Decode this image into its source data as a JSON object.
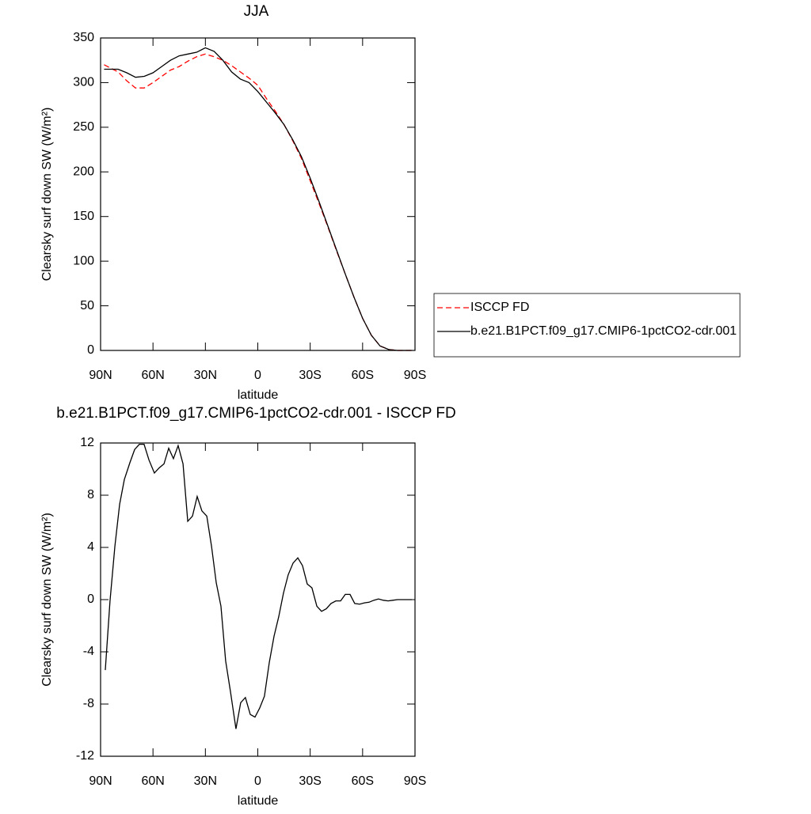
{
  "chart_data": [
    {
      "type": "line",
      "title": "JJA",
      "xlabel": "latitude",
      "ylabel": "Clearsky surf down SW (W/m²)",
      "x": [
        88,
        80,
        75,
        70,
        65,
        60,
        55,
        50,
        45,
        40,
        35,
        30,
        25,
        20,
        15,
        10,
        5,
        0,
        -5,
        -10,
        -15,
        -20,
        -25,
        -30,
        -35,
        -40,
        -45,
        -50,
        -55,
        -60,
        -65,
        -70,
        -75,
        -80,
        -85,
        -88
      ],
      "xlim": [
        90,
        -90
      ],
      "xticks": [
        {
          "value": 90,
          "label": "90N"
        },
        {
          "value": 60,
          "label": "60N"
        },
        {
          "value": 30,
          "label": "30N"
        },
        0,
        {
          "value": -30,
          "label": "30S"
        },
        {
          "value": -60,
          "label": "60S"
        },
        {
          "value": -90,
          "label": "90S"
        }
      ],
      "ylim": [
        0,
        350
      ],
      "yticks": [
        0,
        50,
        100,
        150,
        200,
        250,
        300,
        350
      ],
      "legend": "right",
      "series": [
        {
          "name": "ISCCP FD",
          "color": "#ff0000",
          "line_style": "dashed",
          "values": [
            320,
            312,
            302,
            294,
            294,
            300,
            307,
            314,
            318,
            324,
            329,
            332,
            329,
            325,
            319,
            312,
            305,
            297,
            282,
            268,
            253,
            235,
            215,
            190,
            165,
            139,
            112,
            86,
            60,
            36,
            17,
            5,
            1,
            0,
            0,
            0
          ]
        },
        {
          "name": "b.e21.B1PCT.f09_g17.CMIP6-1pctCO2-cdr.001",
          "color": "#000000",
          "line_style": "solid",
          "values": [
            315,
            315,
            311,
            306,
            307,
            311,
            318,
            325,
            330,
            332,
            334,
            339,
            335,
            325,
            312,
            304,
            300,
            290,
            278,
            266,
            253,
            236,
            217,
            193,
            167,
            140,
            113,
            86,
            60,
            36,
            17,
            5,
            1,
            0,
            0,
            0
          ]
        }
      ]
    },
    {
      "type": "line",
      "title": "b.e21.B1PCT.f09_g17.CMIP6-1pctCO2-cdr.001 - ISCCP FD",
      "xlabel": "latitude",
      "ylabel": "Clearsky surf down SW (W/m²)",
      "x": [
        87.3,
        84.6,
        81.8,
        79.1,
        76.4,
        73.2,
        70.5,
        67.8,
        65.1,
        62.3,
        59.2,
        56.4,
        53.7,
        51.0,
        48.3,
        45.6,
        42.8,
        40.1,
        37.4,
        34.7,
        32.0,
        29.2,
        26.5,
        23.8,
        21.1,
        18.4,
        15.7,
        12.5,
        9.8,
        7.1,
        4.3,
        1.6,
        -1.1,
        -3.8,
        -6.6,
        -9.3,
        -12.0,
        -14.7,
        -17.4,
        -20.2,
        -22.9,
        -25.6,
        -28.3,
        -31.0,
        -33.8,
        -36.5,
        -39.2,
        -41.9,
        -44.7,
        -47.4,
        -50.1,
        -52.8,
        -55.5,
        -58.3,
        -61.0,
        -63.7,
        -66.4,
        -69.1,
        -71.9,
        -74.6,
        -77.3,
        -80.0,
        -82.7,
        -85.5,
        -88.2
      ],
      "xlim": [
        90,
        -90
      ],
      "xticks": [
        {
          "value": 90,
          "label": "90N"
        },
        {
          "value": 60,
          "label": "60N"
        },
        {
          "value": 30,
          "label": "30N"
        },
        0,
        {
          "value": -30,
          "label": "30S"
        },
        {
          "value": -60,
          "label": "60S"
        },
        {
          "value": -90,
          "label": "90S"
        }
      ],
      "ylim": [
        -12,
        12
      ],
      "yticks": [
        -12,
        -8,
        -4,
        0,
        4,
        8,
        12
      ],
      "series": [
        {
          "color": "#000000",
          "line_style": "solid",
          "values": [
            -5.4,
            -0.1,
            4.1,
            7.3,
            9.2,
            10.5,
            11.5,
            11.9,
            11.9,
            10.7,
            9.7,
            10.1,
            10.4,
            11.6,
            10.8,
            11.8,
            10.4,
            6.0,
            6.4,
            7.9,
            6.8,
            6.4,
            4.1,
            1.3,
            -0.5,
            -4.7,
            -7.0,
            -9.9,
            -7.9,
            -7.5,
            -8.8,
            -9.0,
            -8.3,
            -7.4,
            -4.8,
            -2.8,
            -1.3,
            0.5,
            1.9,
            2.8,
            3.2,
            2.6,
            1.2,
            0.9,
            -0.5,
            -0.9,
            -0.7,
            -0.3,
            -0.1,
            -0.1,
            0.4,
            0.4,
            -0.3,
            -0.35,
            -0.25,
            -0.2,
            -0.05,
            0.05,
            -0.05,
            -0.1,
            -0.05,
            0,
            0,
            0,
            0
          ]
        }
      ]
    }
  ]
}
